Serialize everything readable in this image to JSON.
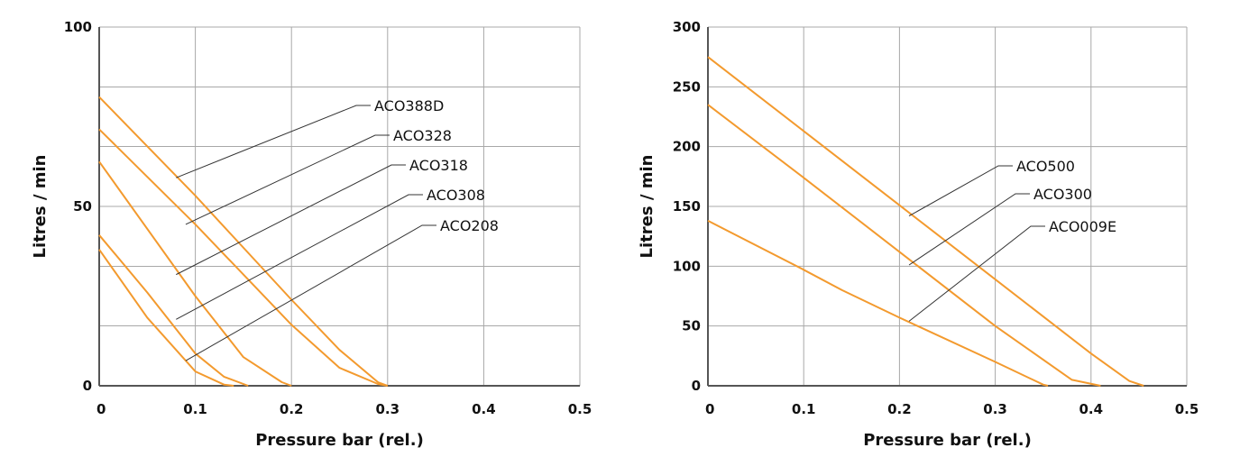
{
  "colors": {
    "curve": "#F39A2E",
    "grid": "#a8a8a8",
    "axis": "#555555",
    "leader": "#333333",
    "text": "#111111"
  },
  "chart_data": [
    {
      "type": "line",
      "xlabel": "Pressure bar (rel.)",
      "ylabel": "Litres / min",
      "xlim": [
        0,
        0.5
      ],
      "ylim": [
        0,
        100
      ],
      "x_ticks": [
        "0",
        "0.1",
        "0.2",
        "0.3",
        "0.4",
        "0.5"
      ],
      "y_ticks": [
        "0",
        "50",
        "100"
      ],
      "x_grid": [
        0.1,
        0.2,
        0.3,
        0.4,
        0.5
      ],
      "y_grid": [
        16.7,
        33.3,
        50,
        66.7,
        83.3,
        100
      ],
      "series": [
        {
          "name": "ACO388D",
          "x": [
            0,
            0.1,
            0.2,
            0.25,
            0.29,
            0.3
          ],
          "y": [
            80.5,
            53,
            24,
            10,
            1,
            0
          ]
        },
        {
          "name": "ACO328",
          "x": [
            0,
            0.1,
            0.2,
            0.25,
            0.29,
            0.3
          ],
          "y": [
            71.5,
            45,
            17,
            5,
            0.5,
            0
          ]
        },
        {
          "name": "ACO318",
          "x": [
            0,
            0.1,
            0.15,
            0.19,
            0.2
          ],
          "y": [
            62.5,
            25,
            8,
            1,
            0
          ]
        },
        {
          "name": "ACO308",
          "x": [
            0,
            0.05,
            0.1,
            0.13,
            0.155
          ],
          "y": [
            42,
            26,
            9,
            2.5,
            0
          ]
        },
        {
          "name": "ACO208",
          "x": [
            0,
            0.05,
            0.1,
            0.13,
            0.14
          ],
          "y": [
            38,
            19,
            4,
            0.3,
            0
          ]
        }
      ],
      "legend_labels": [
        {
          "name": "ACO388D",
          "point": [
            0.08,
            58
          ]
        },
        {
          "name": "ACO328",
          "point": [
            0.09,
            45
          ]
        },
        {
          "name": "ACO318",
          "point": [
            0.08,
            31
          ]
        },
        {
          "name": "ACO308",
          "point": [
            0.08,
            18.5
          ]
        },
        {
          "name": "ACO208",
          "point": [
            0.09,
            7
          ]
        }
      ]
    },
    {
      "type": "line",
      "xlabel": "Pressure bar (rel.)",
      "ylabel": "Litres / min",
      "xlim": [
        0,
        0.5
      ],
      "ylim": [
        0,
        300
      ],
      "x_ticks": [
        "0",
        "0.1",
        "0.2",
        "0.3",
        "0.4",
        "0.5"
      ],
      "y_ticks": [
        "0",
        "50",
        "100",
        "150",
        "200",
        "250",
        "300"
      ],
      "x_grid": [
        0.1,
        0.2,
        0.3,
        0.4,
        0.5
      ],
      "y_grid": [
        50,
        100,
        150,
        200,
        250,
        300
      ],
      "series": [
        {
          "name": "ACO500",
          "x": [
            0,
            0.1,
            0.2,
            0.3,
            0.4,
            0.44,
            0.455
          ],
          "y": [
            275,
            213,
            151,
            89,
            27,
            4,
            0
          ]
        },
        {
          "name": "ACO300",
          "x": [
            0,
            0.1,
            0.2,
            0.3,
            0.38,
            0.41
          ],
          "y": [
            235,
            174,
            112,
            50,
            5,
            0
          ]
        },
        {
          "name": "ACO009E",
          "x": [
            0,
            0.1,
            0.14,
            0.2,
            0.3,
            0.35,
            0.355
          ],
          "y": [
            138,
            97,
            80,
            57,
            20,
            1,
            0
          ]
        }
      ],
      "legend_labels": [
        {
          "name": "ACO500",
          "point": [
            0.21,
            142
          ]
        },
        {
          "name": "ACO300",
          "point": [
            0.21,
            101
          ]
        },
        {
          "name": "ACO009E",
          "point": [
            0.21,
            54
          ]
        }
      ]
    }
  ]
}
